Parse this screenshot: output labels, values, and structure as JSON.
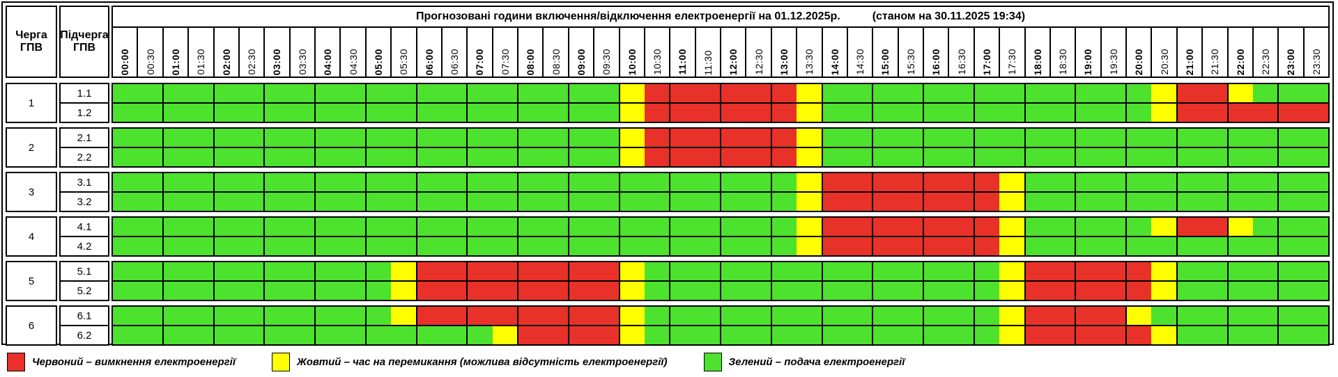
{
  "title": "Прогнозовані години включення/відключення електроенергії на 01.12.2025р.",
  "timestamp_note": "(станом на 30.11.2025 19:34)",
  "column_headers": {
    "queue": "Черга\nГПВ",
    "subqueue": "Підчерга\nГПВ"
  },
  "colors": {
    "G": "#4ce22e",
    "Y": "#ffff00",
    "R": "#e83129"
  },
  "chart_data": {
    "type": "heatmap",
    "title": "Прогнозовані години включення/відключення електроенергії на 01.12.2025р.",
    "subtitle": "(станом на 30.11.2025 19:34)",
    "x_tick_labels": [
      "00:00",
      "00:30",
      "01:00",
      "01:30",
      "02:00",
      "02:30",
      "03:00",
      "03:30",
      "04:00",
      "04:30",
      "05:00",
      "05:30",
      "06:00",
      "06:30",
      "07:00",
      "07:30",
      "08:00",
      "08:30",
      "09:00",
      "09:30",
      "10:00",
      "10:30",
      "11:00",
      "11:30",
      "12:00",
      "12:30",
      "13:00",
      "13:30",
      "14:00",
      "14:30",
      "15:00",
      "15:30",
      "16:00",
      "16:30",
      "17:00",
      "17:30",
      "18:00",
      "18:30",
      "19:00",
      "19:30",
      "20:00",
      "20:30",
      "21:00",
      "21:30",
      "22:00",
      "22:30",
      "23:00",
      "23:30"
    ],
    "value_legend": {
      "G": "подача електроенергії",
      "Y": "час на перемикання",
      "R": "вимкнення електроенергії"
    },
    "rows": [
      {
        "queue": "1",
        "subqueue": "1.1",
        "states": "GGGGGGGGGGGGGGGGGGGGYRRRRRRYGGGGGGGGGGGGGYRRYGGG"
      },
      {
        "queue": "1",
        "subqueue": "1.2",
        "states": "GGGGGGGGGGGGGGGGGGGGYRRRRRRYGGGGGGGGGGGGGYRRRRRR"
      },
      {
        "queue": "2",
        "subqueue": "2.1",
        "states": "GGGGGGGGGGGGGGGGGGGGYRRRRRRYGGGGGGGGGGGGGGGGGGGG"
      },
      {
        "queue": "2",
        "subqueue": "2.2",
        "states": "GGGGGGGGGGGGGGGGGGGGYRRRRRRYGGGGGGGGGGGGGGGGGGGG"
      },
      {
        "queue": "3",
        "subqueue": "3.1",
        "states": "GGGGGGGGGGGGGGGGGGGGGGGGGGGYRRRRRRRYGGGGGGGGGGGG"
      },
      {
        "queue": "3",
        "subqueue": "3.2",
        "states": "GGGGGGGGGGGGGGGGGGGGGGGGGGGYRRRRRRRYGGGGGGGGGGGG"
      },
      {
        "queue": "4",
        "subqueue": "4.1",
        "states": "GGGGGGGGGGGGGGGGGGGGGGGGGGGYRRRRRRRYGGGGGYRRYGGG"
      },
      {
        "queue": "4",
        "subqueue": "4.2",
        "states": "GGGGGGGGGGGGGGGGGGGGGGGGGGGYRRRRRRRYGGGGGGGGGGGG"
      },
      {
        "queue": "5",
        "subqueue": "5.1",
        "states": "GGGGGGGGGGGYRRRRRRRRYGGGGGGGGGGGGGGYRRRRRYGGGGGG"
      },
      {
        "queue": "5",
        "subqueue": "5.2",
        "states": "GGGGGGGGGGGYRRRRRRRRYGGGGGGGGGGGGGGYRRRRRYGGGGGG"
      },
      {
        "queue": "6",
        "subqueue": "6.1",
        "states": "GGGGGGGGGGGYRRRRRRRRYGGGGGGGGGGGGGGYRRRRYGGGGGGG"
      },
      {
        "queue": "6",
        "subqueue": "6.2",
        "states": "GGGGGGGGGGGGGGGYRRRRYGGGGGGGGGGGGGGYRRRRRYGGGGGG"
      }
    ]
  },
  "legend": [
    {
      "key": "R",
      "label": "Червоний – вимкнення електроенергії"
    },
    {
      "key": "Y",
      "label": "Жовтий – час на перемикання (можлива відсутність електроенергії)"
    },
    {
      "key": "G",
      "label": "Зелений – подача електроенергії"
    }
  ]
}
